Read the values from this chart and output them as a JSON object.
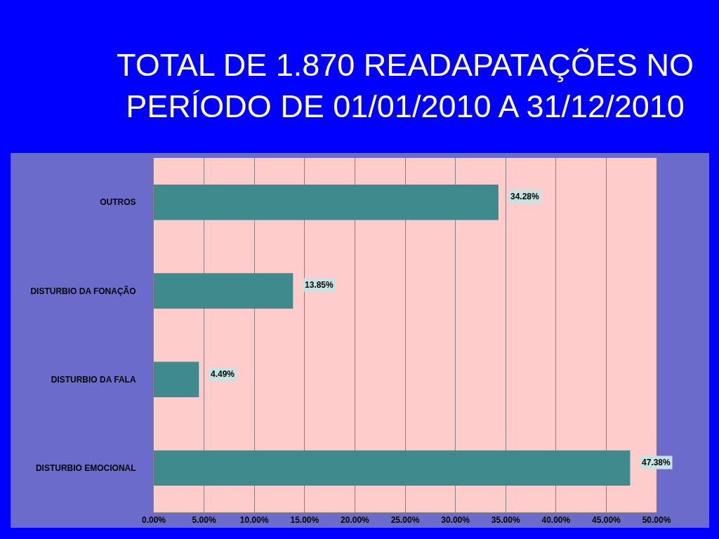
{
  "chart_data": {
    "type": "bar",
    "orientation": "horizontal",
    "title": "TOTAL DE 1.870 READAPATAÇÕES NO PERÍODO DE 01/01/2010 A 31/12/2010",
    "categories": [
      "OUTROS",
      "DISTURBIO DA FONAÇÃO",
      "DISTURBIO DA FALA",
      "DISTURBIO EMOCIONAL"
    ],
    "values": [
      34.28,
      13.85,
      4.49,
      47.38
    ],
    "color": "#3e8a8c",
    "value_labels": [
      "34.28%",
      "13.85%",
      "4.49%",
      "47.38%"
    ],
    "xlim": [
      0,
      50
    ],
    "xticks": [
      {
        "value": 0,
        "label": "0.00%"
      },
      {
        "value": 5,
        "label": "5.00%"
      },
      {
        "value": 10,
        "label": "10.00%"
      },
      {
        "value": 15,
        "label": "15.00%"
      },
      {
        "value": 20,
        "label": "20.00%"
      },
      {
        "value": 25,
        "label": "25.00%"
      },
      {
        "value": 30,
        "label": "30.00%"
      },
      {
        "value": 35,
        "label": "35.00%"
      },
      {
        "value": 40,
        "label": "40.00%"
      },
      {
        "value": 45,
        "label": "45.00%"
      },
      {
        "value": 50,
        "label": "50.00%"
      }
    ],
    "grid": "x",
    "legend": false
  }
}
